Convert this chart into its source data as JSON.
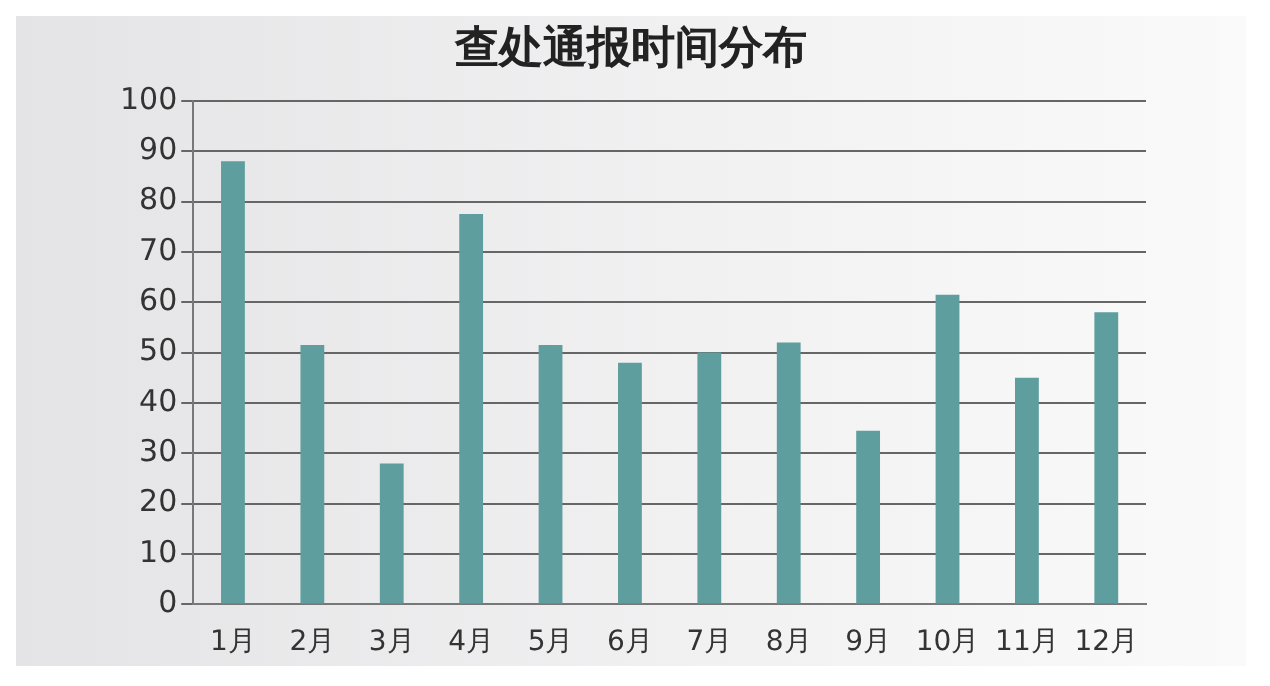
{
  "chart_data": {
    "type": "bar",
    "title": "查处通报时间分布",
    "categories": [
      "1月",
      "2月",
      "3月",
      "4月",
      "5月",
      "6月",
      "7月",
      "8月",
      "9月",
      "10月",
      "11月",
      "12月"
    ],
    "values": [
      88,
      51.5,
      28,
      77.5,
      51.5,
      48,
      50,
      52,
      34.5,
      61.5,
      45,
      58
    ],
    "color": "#5f9e9e",
    "ylim": [
      0,
      100
    ],
    "yticks": [
      0,
      10,
      20,
      30,
      40,
      50,
      60,
      70,
      80,
      90,
      100
    ],
    "grid": "y",
    "legend": false
  }
}
